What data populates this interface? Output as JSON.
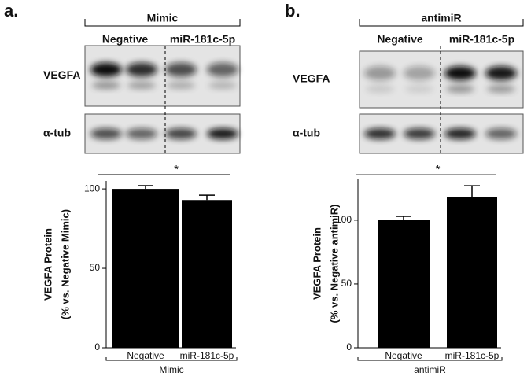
{
  "chart_data": [
    {
      "type": "bar",
      "panel_label": "a.",
      "blot": {
        "group": "Mimic",
        "lanes": [
          "Negative",
          "miR-181c-5p"
        ],
        "rows": [
          "VEGFA",
          "α-tub"
        ]
      },
      "categories": [
        "Negative",
        "miR-181c-5p"
      ],
      "values": [
        100,
        93
      ],
      "errors": [
        2,
        3
      ],
      "color": "#000000",
      "ylim": [
        0,
        105
      ],
      "yticks": [
        0,
        50,
        100
      ],
      "y_label": [
        "VEGFA Protein",
        "(% vs. Negative Mimic)"
      ],
      "x_label": "Mimic",
      "annotation": "*"
    },
    {
      "type": "bar",
      "panel_label": "b.",
      "blot": {
        "group": "antimiR",
        "lanes": [
          "Negative",
          "miR-181c-5p"
        ],
        "rows": [
          "VEGFA",
          "α-tub"
        ]
      },
      "categories": [
        "Negative",
        "miR-181c-5p"
      ],
      "values": [
        100,
        118
      ],
      "errors": [
        3,
        9
      ],
      "color": "#000000",
      "ylim": [
        0,
        132
      ],
      "yticks": [
        0,
        50,
        100
      ],
      "y_label": [
        "VEGFA Protein",
        "(% vs. Negative antimiR)"
      ],
      "x_label": "antimiR",
      "annotation": "*"
    }
  ]
}
